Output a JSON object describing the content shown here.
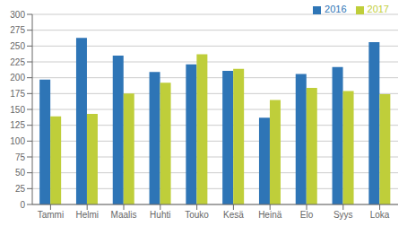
{
  "chart_data": {
    "type": "bar",
    "categories": [
      "Tammi",
      "Helmi",
      "Maalis",
      "Huhti",
      "Touko",
      "Kesä",
      "Heinä",
      "Elo",
      "Syys",
      "Loka"
    ],
    "series": [
      {
        "name": "2016",
        "color": "#2E75B6",
        "values": [
          197,
          263,
          235,
          209,
          221,
          211,
          137,
          206,
          217,
          256
        ]
      },
      {
        "name": "2017",
        "color": "#BFCE3A",
        "values": [
          139,
          143,
          175,
          192,
          237,
          214,
          165,
          184,
          179,
          174
        ]
      }
    ],
    "ylim": [
      0,
      300
    ],
    "yticks": [
      0,
      25,
      50,
      75,
      100,
      125,
      150,
      175,
      200,
      225,
      250,
      275,
      300
    ],
    "grid": true,
    "legend": "upper right"
  }
}
